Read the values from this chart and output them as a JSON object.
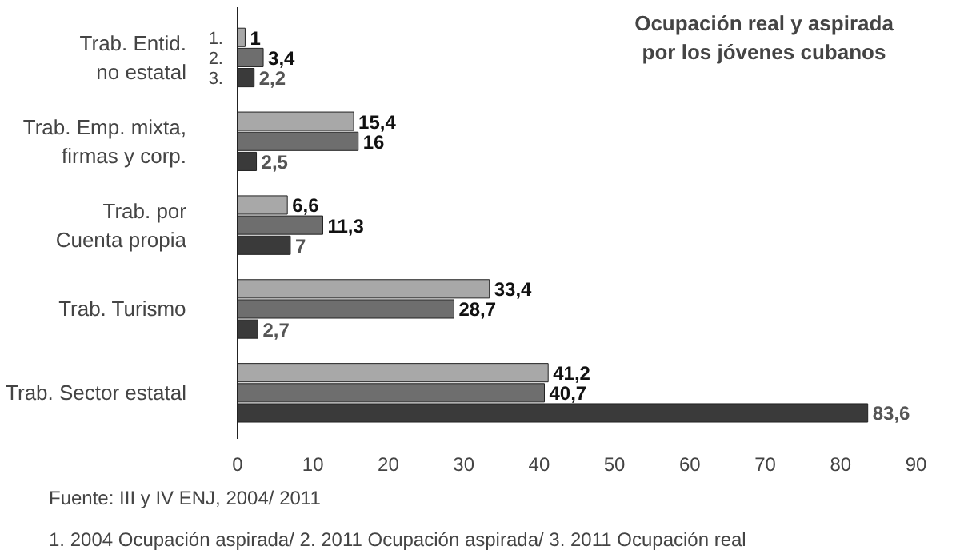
{
  "chart_data": {
    "type": "bar",
    "orientation": "horizontal",
    "title": "Ocupación real y aspirada\npor los jóvenes cubanos",
    "categories": [
      "Trab. Entid.\nno estatal",
      "Trab. Emp. mixta,\nfirmas y corp.",
      "Trab. por\nCuenta propia",
      "Trab. Turismo",
      "Trab. Sector estatal"
    ],
    "series": [
      {
        "name": "1.",
        "color": "#a8a8a8",
        "values": [
          1,
          15.4,
          6.6,
          33.4,
          41.2
        ],
        "value_labels": [
          "1",
          "15,4",
          "6,6",
          "33,4",
          "41,2"
        ]
      },
      {
        "name": "2.",
        "color": "#6e6e6e",
        "values": [
          3.4,
          16,
          11.3,
          28.7,
          40.7
        ],
        "value_labels": [
          "3,4",
          "16",
          "11,3",
          "28,7",
          "40,7"
        ]
      },
      {
        "name": "3.",
        "color": "#3a3a3a",
        "values": [
          2.2,
          2.5,
          7,
          2.7,
          83.6
        ],
        "value_labels": [
          "2,2",
          "2,5",
          "7",
          "2,7",
          "83,6"
        ]
      }
    ],
    "xlim": [
      0,
      90
    ],
    "xticks": [
      0,
      10,
      20,
      30,
      40,
      50,
      60,
      70,
      80,
      90
    ],
    "grid": false,
    "annotations": [
      "1. 2004 Ocupación aspirada/ 2. 2011 Ocupación aspirada/ 3. 2011 Ocupación real",
      "Fuente: III y IV ENJ, 2004/ 2011"
    ]
  }
}
